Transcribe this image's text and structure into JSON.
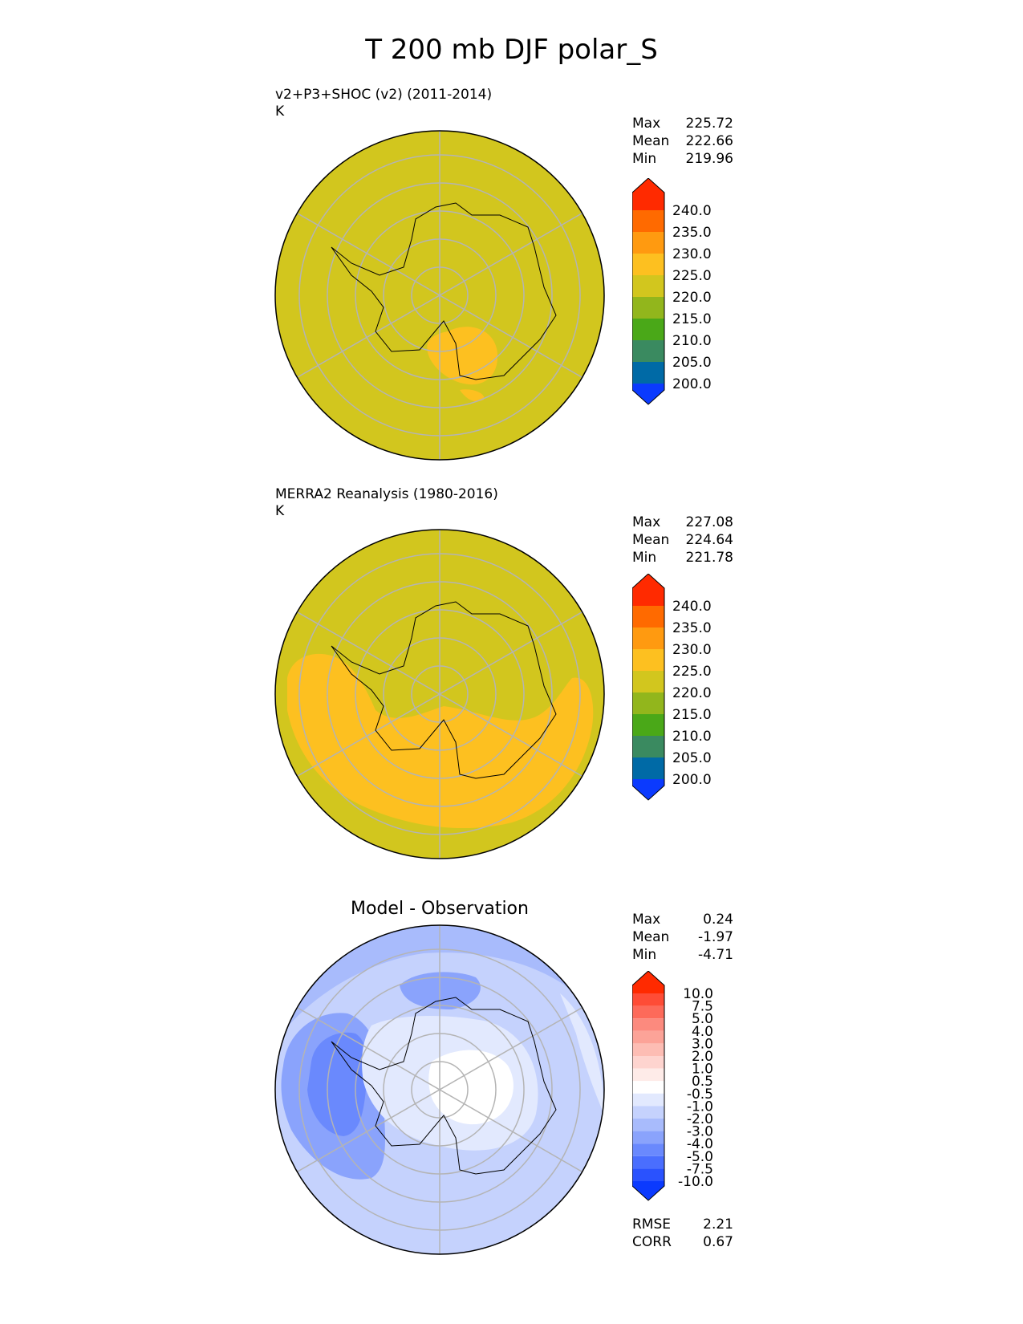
{
  "figure_title": "T 200 mb DJF polar_S",
  "panels": [
    {
      "title": "v2+P3+SHOC (v2) (2011-2014)",
      "units": "K",
      "stats": [
        {
          "label": "Max",
          "value": "225.72"
        },
        {
          "label": "Mean",
          "value": "222.66"
        },
        {
          "label": "Min",
          "value": "219.96"
        }
      ]
    },
    {
      "title": "MERRA2 Reanalysis (1980-2016)",
      "units": "K",
      "stats": [
        {
          "label": "Max",
          "value": "227.08"
        },
        {
          "label": "Mean",
          "value": "224.64"
        },
        {
          "label": "Min",
          "value": "221.78"
        }
      ]
    },
    {
      "title": "Model - Observation",
      "stats": [
        {
          "label": "Max",
          "value": "0.24"
        },
        {
          "label": "Mean",
          "value": "-1.97"
        },
        {
          "label": "Min",
          "value": "-4.71"
        }
      ],
      "extra_stats": [
        {
          "label": "RMSE",
          "value": "2.21"
        },
        {
          "label": "CORR",
          "value": "0.67"
        }
      ]
    }
  ],
  "colorbar_abs": {
    "ticks": [
      "240.0",
      "235.0",
      "230.0",
      "225.0",
      "220.0",
      "215.0",
      "210.0",
      "205.0",
      "200.0"
    ],
    "colors": [
      "#ff2a00",
      "#ff6a00",
      "#ff9a10",
      "#fdc020",
      "#d2c61e",
      "#92b61c",
      "#4aa818",
      "#3a8a60",
      "#006aa6",
      "#0b3afe"
    ]
  },
  "colorbar_diff": {
    "ticks": [
      "10.0",
      "7.5",
      "5.0",
      "4.0",
      "3.0",
      "2.0",
      "1.0",
      "0.5",
      "-0.5",
      "-1.0",
      "-2.0",
      "-3.0",
      "-4.0",
      "-5.0",
      "-7.5",
      "-10.0"
    ],
    "colors": [
      "#ff2a00",
      "#fe4c36",
      "#fd6a5a",
      "#fc8a7e",
      "#fca398",
      "#fdbdb4",
      "#fed4cf",
      "#feebe8",
      "#ffffff",
      "#e2e9fe",
      "#c5d2fd",
      "#a8bbfc",
      "#8aa3fc",
      "#6a89fd",
      "#4a6efe",
      "#2a52fe",
      "#0b3afe"
    ]
  },
  "field_colors": {
    "bg_220_225": "#d2c61e",
    "warm_225_230": "#fdc020",
    "diff_n1": "#c5d2fd",
    "diff_n2": "#a8bbfc",
    "diff_n3": "#8aa3fc",
    "diff_n4": "#6a89fd",
    "diff_light": "#e2e9fe"
  }
}
